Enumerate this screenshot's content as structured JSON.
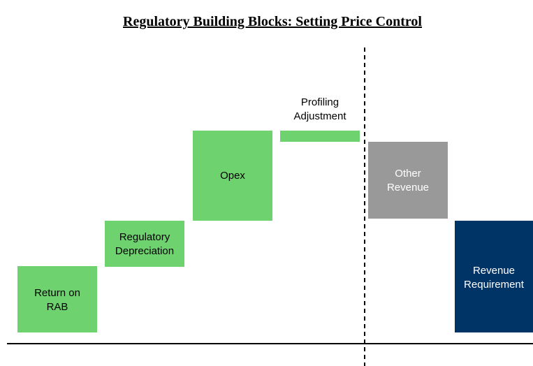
{
  "title": "Regulatory Building Blocks: Setting Price Control",
  "blocks": [
    {
      "label": [
        "Return on",
        "RAB"
      ]
    },
    {
      "label": [
        "Regulatory",
        "Depreciation"
      ]
    },
    {
      "label": [
        "Opex"
      ]
    },
    {
      "label": [
        "Profiling",
        "Adjustment"
      ]
    },
    {
      "label": [
        "Other",
        "Revenue"
      ]
    },
    {
      "label": [
        "Revenue",
        "Requirement"
      ]
    }
  ]
}
